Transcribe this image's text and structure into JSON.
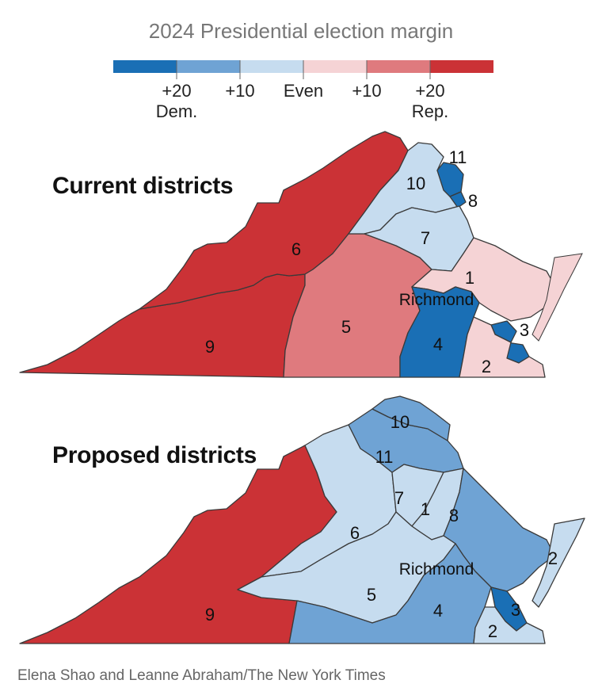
{
  "title": "2024 Presidential election margin",
  "legend": {
    "colors": [
      "#1a6fb5",
      "#6fa3d4",
      "#c6dcef",
      "#f5d3d5",
      "#df7a7e",
      "#cb3236"
    ],
    "ticks": [
      {
        "value": "+20",
        "sub": "Dem."
      },
      {
        "value": "+10",
        "sub": ""
      },
      {
        "value": "Even",
        "sub": ""
      },
      {
        "value": "+10",
        "sub": ""
      },
      {
        "value": "+20",
        "sub": "Rep."
      }
    ]
  },
  "current": {
    "heading": "Current districts",
    "city": "Richmond",
    "districts": [
      {
        "num": "11",
        "color": "#1a6fb5"
      },
      {
        "num": "10",
        "color": "#c6dcef"
      },
      {
        "num": "8",
        "color": "#1a6fb5"
      },
      {
        "num": "7",
        "color": "#c6dcef"
      },
      {
        "num": "6",
        "color": "#cb3236"
      },
      {
        "num": "1",
        "color": "#f5d3d5"
      },
      {
        "num": "5",
        "color": "#df7a7e"
      },
      {
        "num": "3",
        "color": "#1a6fb5"
      },
      {
        "num": "9",
        "color": "#cb3236"
      },
      {
        "num": "4",
        "color": "#1a6fb5"
      },
      {
        "num": "2",
        "color": "#f5d3d5"
      }
    ]
  },
  "proposed": {
    "heading": "Proposed districts",
    "city": "Richmond",
    "districts": [
      {
        "num": "10",
        "color": "#6fa3d4"
      },
      {
        "num": "11",
        "color": "#6fa3d4"
      },
      {
        "num": "7",
        "color": "#c6dcef"
      },
      {
        "num": "1",
        "color": "#c6dcef"
      },
      {
        "num": "8",
        "color": "#6fa3d4"
      },
      {
        "num": "6",
        "color": "#c6dcef"
      },
      {
        "num": "2",
        "color": "#c6dcef"
      },
      {
        "num": "5",
        "color": "#c6dcef"
      },
      {
        "num": "3",
        "color": "#1a6fb5"
      },
      {
        "num": "9",
        "color": "#cb3236"
      },
      {
        "num": "4",
        "color": "#6fa3d4"
      },
      {
        "num": "2",
        "color": "#c6dcef"
      }
    ]
  },
  "credit": "Elena Shao and Leanne Abraham/The New York Times"
}
